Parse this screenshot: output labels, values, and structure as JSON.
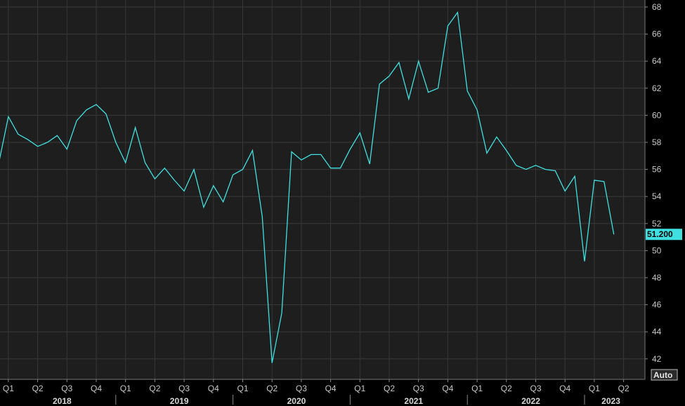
{
  "chart_data": {
    "type": "line",
    "title": "",
    "xlabel": "",
    "ylabel": "",
    "ylim": [
      41,
      68.5
    ],
    "grid": true,
    "line_color": "#3fe0e0",
    "background_color": "#1e1e1e",
    "last_value_label": "51.200",
    "scale_button_label": "Auto",
    "y_ticks": [
      "42",
      "44",
      "46",
      "48",
      "50",
      "52",
      "54",
      "56",
      "58",
      "60",
      "62",
      "64",
      "66",
      "68"
    ],
    "quarter_ticks": [
      "Q1",
      "Q2",
      "Q3",
      "Q4",
      "Q1",
      "Q2",
      "Q3",
      "Q4",
      "Q1",
      "Q2",
      "Q3",
      "Q4",
      "Q1",
      "Q2",
      "Q3",
      "Q4",
      "Q1",
      "Q2",
      "Q3",
      "Q4",
      "Q1",
      "Q2"
    ],
    "year_labels": [
      "2018",
      "2019",
      "2020",
      "2021",
      "2022",
      "2023"
    ],
    "x": [
      "2017-12",
      "2018-01",
      "2018-02",
      "2018-03",
      "2018-04",
      "2018-05",
      "2018-06",
      "2018-07",
      "2018-08",
      "2018-09",
      "2018-10",
      "2018-11",
      "2018-12",
      "2019-01",
      "2019-02",
      "2019-03",
      "2019-04",
      "2019-05",
      "2019-06",
      "2019-07",
      "2019-08",
      "2019-09",
      "2019-10",
      "2019-11",
      "2019-12",
      "2020-01",
      "2020-02",
      "2020-03",
      "2020-04",
      "2020-05",
      "2020-06",
      "2020-07",
      "2020-08",
      "2020-09",
      "2020-10",
      "2020-11",
      "2020-12",
      "2021-01",
      "2021-02",
      "2021-03",
      "2021-04",
      "2021-05",
      "2021-06",
      "2021-07",
      "2021-08",
      "2021-09",
      "2021-10",
      "2021-11",
      "2021-12",
      "2022-01",
      "2022-02",
      "2022-03",
      "2022-04",
      "2022-05",
      "2022-06",
      "2022-07",
      "2022-08",
      "2022-09",
      "2022-10",
      "2022-11",
      "2022-12",
      "2023-01",
      "2023-02",
      "2023-03"
    ],
    "series": [
      {
        "values": [
          56.4,
          59.9,
          58.6,
          58.2,
          57.7,
          58.0,
          58.5,
          57.5,
          59.6,
          60.4,
          60.8,
          60.1,
          58.0,
          56.5,
          59.1,
          56.5,
          55.3,
          56.1,
          55.2,
          54.4,
          56.0,
          53.2,
          54.8,
          53.6,
          55.6,
          56.0,
          57.4,
          52.5,
          41.7,
          45.4,
          57.3,
          56.7,
          57.1,
          57.1,
          56.1,
          56.1,
          57.5,
          58.7,
          56.4,
          62.3,
          62.9,
          63.9,
          61.2,
          64.0,
          61.7,
          62.0,
          66.6,
          67.6,
          61.8,
          60.4,
          57.2,
          58.4,
          57.4,
          56.3,
          56.0,
          56.3,
          56.0,
          55.9,
          54.4,
          55.5,
          49.2,
          55.2,
          55.1,
          51.2
        ]
      }
    ]
  }
}
